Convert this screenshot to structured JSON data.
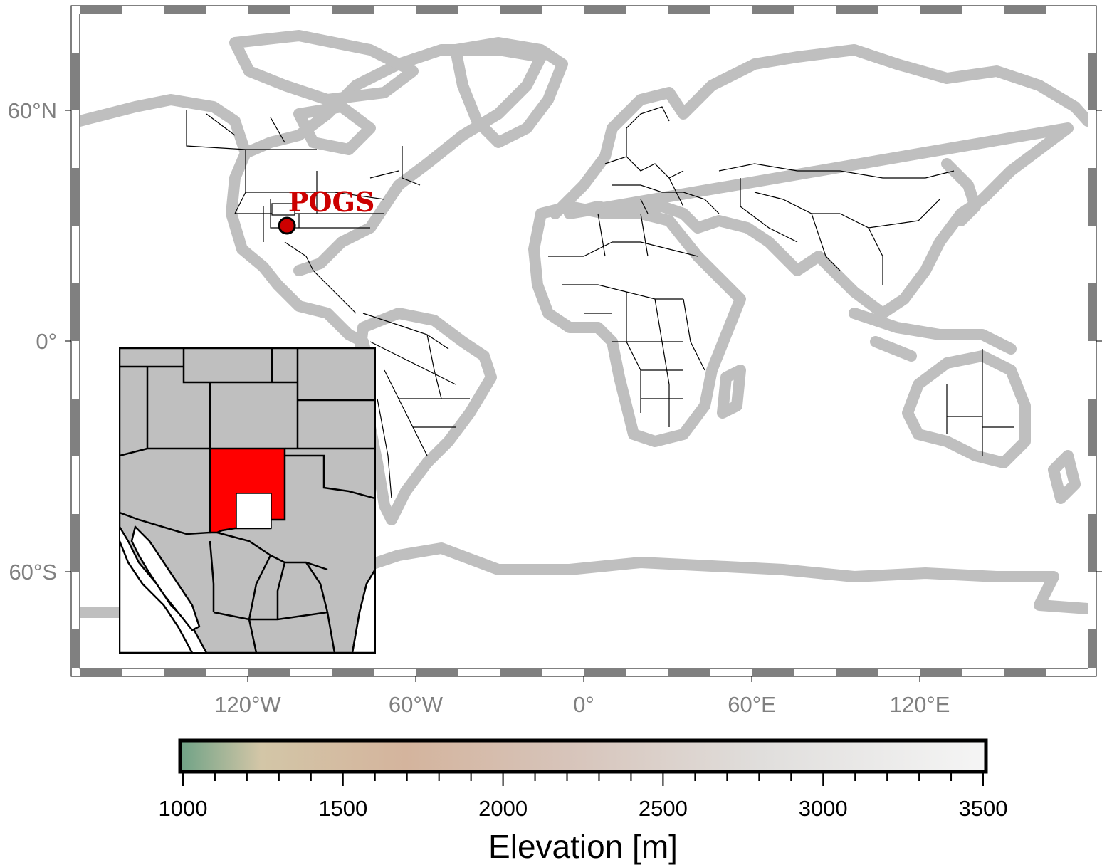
{
  "map": {
    "projection": "cylindrical",
    "lon_range": [
      -180,
      180
    ],
    "lat_range": [
      -85,
      85
    ],
    "land_color": "#bfbfbf",
    "ocean_color": "#ffffff",
    "border_color": "#000000",
    "frame_dark": "#808080",
    "frame_light": "#ffffff"
  },
  "x_axis": {
    "ticks": [
      {
        "lon": -120,
        "label": "120°W"
      },
      {
        "lon": -60,
        "label": "60°W"
      },
      {
        "lon": 0,
        "label": "0°"
      },
      {
        "lon": 60,
        "label": "60°E"
      },
      {
        "lon": 120,
        "label": "120°E"
      }
    ]
  },
  "y_axis": {
    "ticks": [
      {
        "lat": 60,
        "label": "60°N"
      },
      {
        "lat": 0,
        "label": "0°"
      },
      {
        "lat": -60,
        "label": "60°S"
      }
    ]
  },
  "marker": {
    "lon": -106,
    "lat": 30,
    "fill": "#cc0000",
    "text": "POGS",
    "text_lon": -103,
    "text_lat": 37
  },
  "inset": {
    "region": "US Southwest / Mexico",
    "highlight_state": "New Mexico",
    "highlight_color": "#ff0000",
    "land_color": "#bfbfbf"
  },
  "colorbar": {
    "min": 1000,
    "max": 3500,
    "title": "Elevation [m]",
    "labels": [
      "1000",
      "1500",
      "2000",
      "2500",
      "3000",
      "3500"
    ],
    "label_values": [
      1000,
      1500,
      2000,
      2500,
      3000,
      3500
    ],
    "minor_step": 100,
    "stops": [
      {
        "v": 1000,
        "color": "#6fa286"
      },
      {
        "v": 1250,
        "color": "#d3c6a7"
      },
      {
        "v": 1700,
        "color": "#d4b49d"
      },
      {
        "v": 2200,
        "color": "#d7c4ba"
      },
      {
        "v": 2800,
        "color": "#e0dedc"
      },
      {
        "v": 3500,
        "color": "#f5f5f5"
      }
    ]
  }
}
